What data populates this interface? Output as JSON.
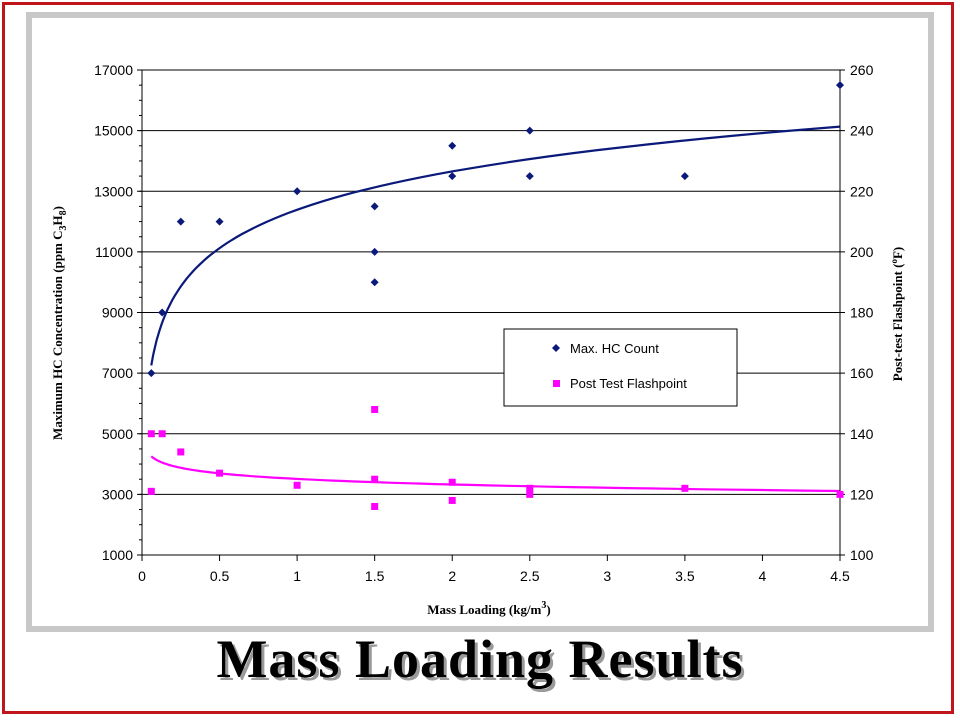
{
  "slide": {
    "title": "Mass Loading Results"
  },
  "chart_data": {
    "type": "scatter",
    "x_axis": {
      "label_main": "Mass Loading (kg/m",
      "label_sup": "3",
      "label_end": ")",
      "range": [
        0,
        4.5
      ],
      "ticks": [
        0,
        0.5,
        1,
        1.5,
        2,
        2.5,
        3,
        3.5,
        4,
        4.5
      ],
      "tick_labels": [
        "0",
        "0.5",
        "1",
        "1.5",
        "2",
        "2.5",
        "3",
        "3.5",
        "4",
        "4.5"
      ]
    },
    "y_left": {
      "label_parts": [
        "Maximum HC Concentration (ppm C",
        "3",
        "H",
        "8",
        ")"
      ],
      "range": [
        1000,
        17000
      ],
      "ticks": [
        1000,
        3000,
        5000,
        7000,
        9000,
        11000,
        13000,
        15000,
        17000
      ],
      "tick_labels": [
        "1000",
        "3000",
        "5000",
        "7000",
        "9000",
        "11000",
        "13000",
        "15000",
        "17000"
      ]
    },
    "y_right": {
      "label_parts": [
        "Post-test Flashpoint (",
        "o",
        "F)"
      ],
      "range": [
        100,
        260
      ],
      "ticks": [
        100,
        120,
        140,
        160,
        180,
        200,
        220,
        240,
        260
      ],
      "tick_labels": [
        "100",
        "120",
        "140",
        "160",
        "180",
        "200",
        "220",
        "240",
        "260"
      ]
    },
    "grid": "horizontal",
    "legend_position": "center-right",
    "series": [
      {
        "name": "Max. HC Count",
        "axis": "left",
        "marker": "diamond",
        "color": "#0b1a7a",
        "points": [
          [
            0.06,
            7000
          ],
          [
            0.13,
            9000
          ],
          [
            0.25,
            12000
          ],
          [
            0.5,
            12000
          ],
          [
            1,
            13000
          ],
          [
            1.5,
            12500
          ],
          [
            1.5,
            11000
          ],
          [
            1.5,
            10000
          ],
          [
            2,
            14500
          ],
          [
            2,
            13500
          ],
          [
            2.5,
            15000
          ],
          [
            2.5,
            13500
          ],
          [
            3.5,
            13500
          ],
          [
            4.5,
            16500
          ]
        ],
        "trendline": {
          "type": "logarithmic",
          "a": 12389,
          "b": 1825,
          "x_range": [
            0.06,
            4.5
          ],
          "color": "#0b1a7a"
        }
      },
      {
        "name": "Post Test Flashpoint",
        "axis": "right",
        "marker": "square",
        "color": "#ff00ff",
        "points": [
          [
            0.06,
            140
          ],
          [
            0.13,
            140
          ],
          [
            0.06,
            121
          ],
          [
            0.25,
            134
          ],
          [
            0.5,
            127
          ],
          [
            1,
            123
          ],
          [
            1.5,
            148
          ],
          [
            1.5,
            125
          ],
          [
            1.5,
            116
          ],
          [
            2,
            124
          ],
          [
            2,
            118
          ],
          [
            2.5,
            122
          ],
          [
            2.5,
            120
          ],
          [
            3.5,
            122
          ],
          [
            4.5,
            120
          ]
        ],
        "trendline": {
          "type": "logarithmic",
          "a": 125.1,
          "b": -2.65,
          "x_range": [
            0.06,
            4.5
          ],
          "color": "#ff00ff"
        }
      }
    ]
  }
}
